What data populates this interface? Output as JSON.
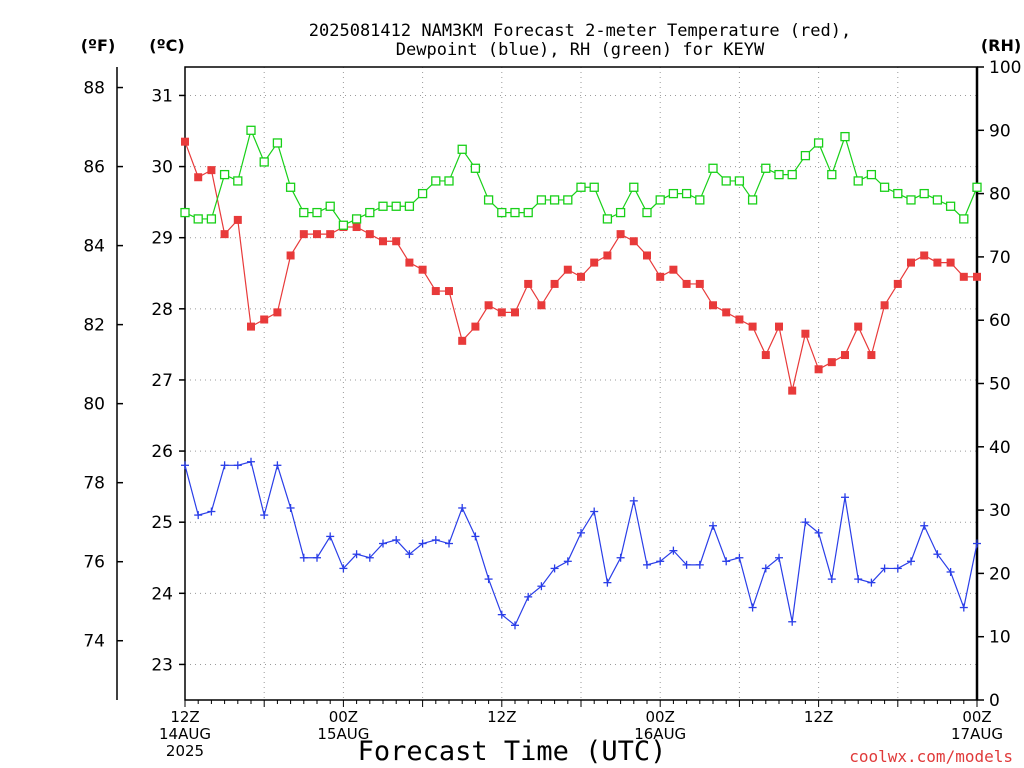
{
  "title_line1": "2025081412 NAM3KM Forecast 2-meter Temperature (red),",
  "title_line2": "Dewpoint (blue), RH (green) for KEYW",
  "unit_f": "(ºF)",
  "unit_c": "(ºC)",
  "unit_rh": "(RH)",
  "xlabel": "Forecast Time (UTC)",
  "credit": "coolwx.com/models",
  "chart_data": {
    "type": "line",
    "title": "2025081412 NAM3KM Forecast 2-meter Temperature (red), Dewpoint (blue), RH (green) for KEYW",
    "xlabel": "Forecast Time (UTC)",
    "forecast_hours": [
      0,
      1,
      2,
      3,
      4,
      5,
      6,
      7,
      8,
      9,
      10,
      11,
      12,
      13,
      14,
      15,
      16,
      17,
      18,
      19,
      20,
      21,
      22,
      23,
      24,
      25,
      26,
      27,
      28,
      29,
      30,
      31,
      32,
      33,
      34,
      35,
      36,
      37,
      38,
      39,
      40,
      41,
      42,
      43,
      44,
      45,
      46,
      47,
      48,
      49,
      50,
      51,
      52,
      53,
      54,
      55,
      56,
      57,
      58,
      59,
      60
    ],
    "x_ticks": [
      {
        "hour": 0,
        "lines": [
          "12Z",
          "14AUG",
          "2025"
        ]
      },
      {
        "hour": 12,
        "lines": [
          "00Z",
          "15AUG"
        ]
      },
      {
        "hour": 24,
        "lines": [
          "12Z"
        ]
      },
      {
        "hour": 36,
        "lines": [
          "00Z",
          "16AUG"
        ]
      },
      {
        "hour": 48,
        "lines": [
          "12Z"
        ]
      },
      {
        "hour": 60,
        "lines": [
          "00Z",
          "17AUG"
        ]
      }
    ],
    "left_axis_f": {
      "label": "(ºF)",
      "ticks": [
        74,
        76,
        78,
        80,
        82,
        84,
        86,
        88
      ]
    },
    "left_axis_c": {
      "label": "(ºC)",
      "ylim": [
        22.5,
        31.4
      ],
      "ticks": [
        23,
        24,
        25,
        26,
        27,
        28,
        29,
        30,
        31
      ]
    },
    "right_axis_rh": {
      "label": "(RH)",
      "ylim": [
        0,
        100
      ],
      "ticks": [
        0,
        10,
        20,
        30,
        40,
        50,
        60,
        70,
        80,
        90,
        100
      ]
    },
    "grid": true,
    "series": [
      {
        "name": "Temperature",
        "axis": "c",
        "color": "#e83a3a",
        "marker": "filled-square",
        "values": [
          30.35,
          29.85,
          29.95,
          29.05,
          29.25,
          27.75,
          27.85,
          27.95,
          28.75,
          29.05,
          29.05,
          29.05,
          29.15,
          29.15,
          29.05,
          28.95,
          28.95,
          28.65,
          28.55,
          28.25,
          28.25,
          27.55,
          27.75,
          28.05,
          27.95,
          27.95,
          28.35,
          28.05,
          28.35,
          28.55,
          28.45,
          28.65,
          28.75,
          29.05,
          28.95,
          28.75,
          28.45,
          28.55,
          28.35,
          28.35,
          28.05,
          27.95,
          27.85,
          27.75,
          27.35,
          27.75,
          26.85,
          27.65,
          27.15,
          27.25,
          27.35,
          27.75,
          27.35,
          28.05,
          28.35,
          28.65,
          28.75,
          28.65,
          28.65,
          28.45,
          28.45
        ]
      },
      {
        "name": "Dewpoint",
        "axis": "c",
        "color": "#2a3ee8",
        "marker": "plus",
        "values": [
          25.8,
          25.1,
          25.15,
          25.8,
          25.8,
          25.85,
          25.1,
          25.8,
          25.2,
          24.5,
          24.5,
          24.8,
          24.35,
          24.55,
          24.5,
          24.7,
          24.75,
          24.55,
          24.7,
          24.75,
          24.7,
          25.2,
          24.8,
          24.2,
          23.7,
          23.55,
          23.95,
          24.1,
          24.35,
          24.45,
          24.85,
          25.15,
          24.15,
          24.5,
          25.3,
          24.4,
          24.45,
          24.6,
          24.4,
          24.4,
          24.95,
          24.45,
          24.5,
          23.8,
          24.35,
          24.5,
          23.6,
          25.0,
          24.85,
          24.2,
          25.35,
          24.2,
          24.15,
          24.35,
          24.35,
          24.45,
          24.95,
          24.55,
          24.3,
          23.8,
          24.7
        ]
      },
      {
        "name": "RH",
        "axis": "rh",
        "color": "#18d018",
        "marker": "open-square",
        "values": [
          77,
          76,
          76,
          83,
          82,
          90,
          85,
          88,
          81,
          77,
          77,
          78,
          75,
          76,
          77,
          78,
          78,
          78,
          80,
          82,
          82,
          87,
          84,
          79,
          77,
          77,
          77,
          79,
          79,
          79,
          81,
          81,
          76,
          77,
          81,
          77,
          79,
          80,
          80,
          79,
          84,
          82,
          82,
          79,
          84,
          83,
          83,
          86,
          88,
          83,
          89,
          82,
          83,
          81,
          80,
          79,
          80,
          79,
          78,
          76,
          81
        ]
      }
    ]
  }
}
